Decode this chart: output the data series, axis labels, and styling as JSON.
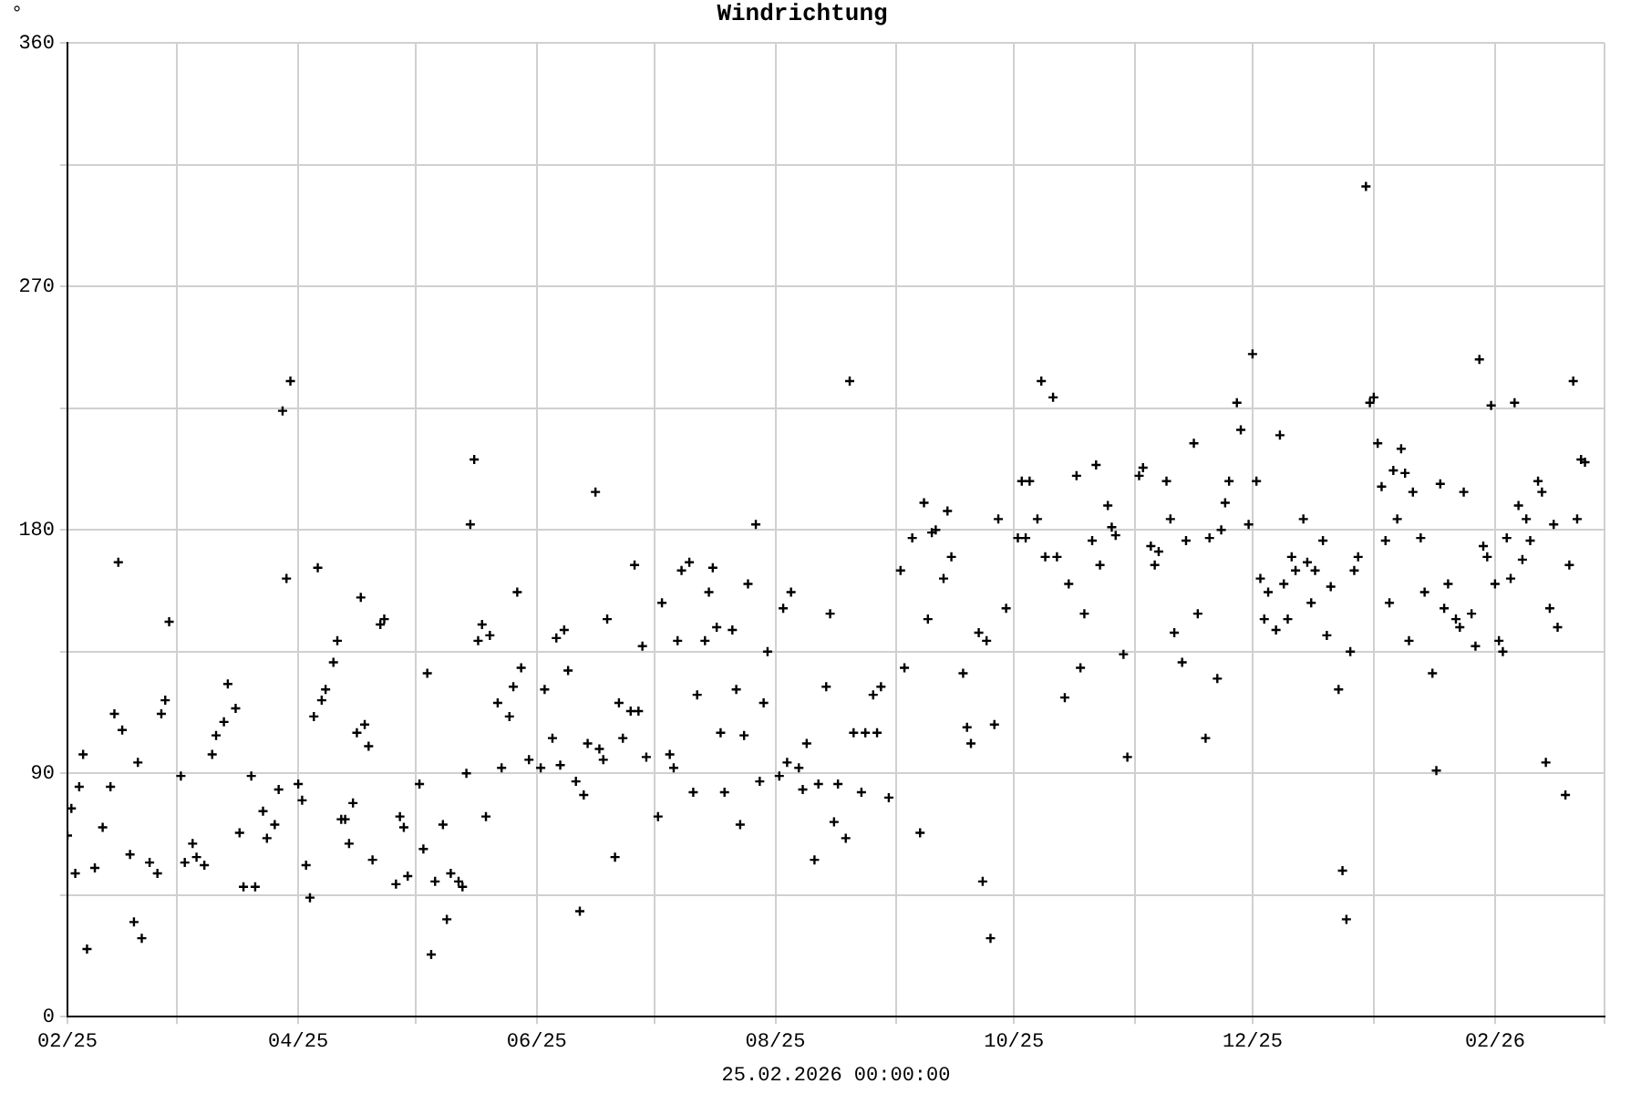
{
  "chart_data": {
    "type": "scatter",
    "title": "Windrichtung",
    "xlabel": "25.02.2026 00:00:00",
    "ylabel": "°",
    "color": "#000000",
    "marker": "cross",
    "grid": true,
    "legend": false,
    "xlim": [
      "2025-02-01",
      "2026-03-01"
    ],
    "xticks": [
      {
        "value": "2025-02",
        "label": "02/25"
      },
      {
        "value": "2025-03",
        "label": null
      },
      {
        "value": "2025-04",
        "label": "04/25"
      },
      {
        "value": "2025-05",
        "label": null
      },
      {
        "value": "2025-06",
        "label": "06/25"
      },
      {
        "value": "2025-07",
        "label": null
      },
      {
        "value": "2025-08",
        "label": "08/25"
      },
      {
        "value": "2025-09",
        "label": null
      },
      {
        "value": "2025-10",
        "label": "10/25"
      },
      {
        "value": "2025-11",
        "label": null
      },
      {
        "value": "2025-12",
        "label": "12/25"
      },
      {
        "value": "2026-01",
        "label": null
      },
      {
        "value": "2026-02",
        "label": "02/26"
      },
      {
        "value": "2026-03",
        "label": null
      }
    ],
    "ylim": [
      0,
      360
    ],
    "yticks": [
      0,
      {
        "value": 45,
        "label": null
      },
      90,
      {
        "value": 135,
        "label": null
      },
      180,
      {
        "value": 225,
        "label": null
      },
      270,
      {
        "value": 315,
        "label": null
      },
      360
    ],
    "x": [
      "2025-02-01",
      "2025-02-02",
      "2025-02-03",
      "2025-02-04",
      "2025-02-05",
      "2025-02-06",
      "2025-02-08",
      "2025-02-10",
      "2025-02-12",
      "2025-02-13",
      "2025-02-14",
      "2025-02-15",
      "2025-02-17",
      "2025-02-18",
      "2025-02-19",
      "2025-02-20",
      "2025-02-22",
      "2025-02-24",
      "2025-02-25",
      "2025-02-26",
      "2025-02-27",
      "2025-03-02",
      "2025-03-03",
      "2025-03-05",
      "2025-03-06",
      "2025-03-08",
      "2025-03-10",
      "2025-03-11",
      "2025-03-13",
      "2025-03-14",
      "2025-03-16",
      "2025-03-17",
      "2025-03-18",
      "2025-03-20",
      "2025-03-21",
      "2025-03-23",
      "2025-03-24",
      "2025-03-26",
      "2025-03-27",
      "2025-03-28",
      "2025-03-29",
      "2025-03-30",
      "2025-04-01",
      "2025-04-02",
      "2025-04-03",
      "2025-04-04",
      "2025-04-05",
      "2025-04-06",
      "2025-04-07",
      "2025-04-08",
      "2025-04-10",
      "2025-04-11",
      "2025-04-12",
      "2025-04-13",
      "2025-04-14",
      "2025-04-15",
      "2025-04-16",
      "2025-04-17",
      "2025-04-18",
      "2025-04-19",
      "2025-04-20",
      "2025-04-22",
      "2025-04-23",
      "2025-04-26",
      "2025-04-27",
      "2025-04-28",
      "2025-04-29",
      "2025-05-02",
      "2025-05-03",
      "2025-05-04",
      "2025-05-05",
      "2025-05-06",
      "2025-05-08",
      "2025-05-09",
      "2025-05-10",
      "2025-05-12",
      "2025-05-13",
      "2025-05-14",
      "2025-05-15",
      "2025-05-16",
      "2025-05-17",
      "2025-05-18",
      "2025-05-19",
      "2025-05-20",
      "2025-05-22",
      "2025-05-23",
      "2025-05-25",
      "2025-05-26",
      "2025-05-27",
      "2025-05-28",
      "2025-05-30",
      "2025-06-02",
      "2025-06-03",
      "2025-06-05",
      "2025-06-06",
      "2025-06-07",
      "2025-06-08",
      "2025-06-09",
      "2025-06-11",
      "2025-06-12",
      "2025-06-13",
      "2025-06-14",
      "2025-06-16",
      "2025-06-17",
      "2025-06-18",
      "2025-06-19",
      "2025-06-21",
      "2025-06-22",
      "2025-06-23",
      "2025-06-25",
      "2025-06-26",
      "2025-06-27",
      "2025-06-28",
      "2025-06-29",
      "2025-07-02",
      "2025-07-03",
      "2025-07-05",
      "2025-07-06",
      "2025-07-07",
      "2025-07-08",
      "2025-07-10",
      "2025-07-11",
      "2025-07-12",
      "2025-07-14",
      "2025-07-15",
      "2025-07-16",
      "2025-07-17",
      "2025-07-18",
      "2025-07-19",
      "2025-07-21",
      "2025-07-22",
      "2025-07-23",
      "2025-07-24",
      "2025-07-25",
      "2025-07-27",
      "2025-07-28",
      "2025-07-29",
      "2025-07-30",
      "2025-08-02",
      "2025-08-03",
      "2025-08-04",
      "2025-08-05",
      "2025-08-07",
      "2025-08-08",
      "2025-08-09",
      "2025-08-11",
      "2025-08-12",
      "2025-08-14",
      "2025-08-15",
      "2025-08-16",
      "2025-08-17",
      "2025-08-19",
      "2025-08-20",
      "2025-08-21",
      "2025-08-23",
      "2025-08-24",
      "2025-08-26",
      "2025-08-27",
      "2025-08-28",
      "2025-08-30",
      "2025-09-02",
      "2025-09-03",
      "2025-09-05",
      "2025-09-07",
      "2025-09-08",
      "2025-09-09",
      "2025-09-10",
      "2025-09-11",
      "2025-09-13",
      "2025-09-14",
      "2025-09-15",
      "2025-09-18",
      "2025-09-19",
      "2025-09-20",
      "2025-09-22",
      "2025-09-23",
      "2025-09-24",
      "2025-09-25",
      "2025-09-26",
      "2025-09-27",
      "2025-09-29",
      "2025-10-02",
      "2025-10-03",
      "2025-10-04",
      "2025-10-05",
      "2025-10-07",
      "2025-10-08",
      "2025-10-09",
      "2025-10-11",
      "2025-10-12",
      "2025-10-14",
      "2025-10-15",
      "2025-10-17",
      "2025-10-18",
      "2025-10-19",
      "2025-10-21",
      "2025-10-22",
      "2025-10-23",
      "2025-10-25",
      "2025-10-26",
      "2025-10-27",
      "2025-10-29",
      "2025-10-30",
      "2025-11-02",
      "2025-11-03",
      "2025-11-05",
      "2025-11-06",
      "2025-11-07",
      "2025-11-09",
      "2025-11-10",
      "2025-11-11",
      "2025-11-13",
      "2025-11-14",
      "2025-11-16",
      "2025-11-17",
      "2025-11-19",
      "2025-11-20",
      "2025-11-22",
      "2025-11-23",
      "2025-11-24",
      "2025-11-25",
      "2025-11-27",
      "2025-11-28",
      "2025-11-30",
      "2025-12-01",
      "2025-12-02",
      "2025-12-03",
      "2025-12-04",
      "2025-12-05",
      "2025-12-07",
      "2025-12-08",
      "2025-12-09",
      "2025-12-10",
      "2025-12-11",
      "2025-12-12",
      "2025-12-14",
      "2025-12-15",
      "2025-12-16",
      "2025-12-17",
      "2025-12-19",
      "2025-12-20",
      "2025-12-21",
      "2025-12-23",
      "2025-12-24",
      "2025-12-25",
      "2025-12-26",
      "2025-12-27",
      "2025-12-28",
      "2025-12-30",
      "2025-12-31",
      "2026-01-01",
      "2026-01-02",
      "2026-01-03",
      "2026-01-04",
      "2026-01-05",
      "2026-01-06",
      "2026-01-07",
      "2026-01-08",
      "2026-01-09",
      "2026-01-10",
      "2026-01-11",
      "2026-01-13",
      "2026-01-14",
      "2026-01-16",
      "2026-01-17",
      "2026-01-18",
      "2026-01-19",
      "2026-01-20",
      "2026-01-22",
      "2026-01-23",
      "2026-01-24",
      "2026-01-26",
      "2026-01-27",
      "2026-01-28",
      "2026-01-29",
      "2026-01-30",
      "2026-01-31",
      "2026-02-01",
      "2026-02-02",
      "2026-02-03",
      "2026-02-04",
      "2026-02-05",
      "2026-02-06",
      "2026-02-07",
      "2026-02-08",
      "2026-02-09",
      "2026-02-10",
      "2026-02-12",
      "2026-02-13",
      "2026-02-14",
      "2026-02-15",
      "2026-02-16",
      "2026-02-17",
      "2026-02-19",
      "2026-02-20",
      "2026-02-21",
      "2026-02-22",
      "2026-02-23",
      "2026-02-24"
    ],
    "values": [
      67,
      77,
      53,
      85,
      97,
      25,
      55,
      70,
      85,
      112,
      168,
      106,
      60,
      35,
      94,
      29,
      57,
      53,
      112,
      117,
      146,
      89,
      57,
      64,
      59,
      56,
      97,
      104,
      109,
      123,
      114,
      68,
      48,
      89,
      48,
      76,
      66,
      71,
      84,
      224,
      162,
      235,
      86,
      80,
      56,
      44,
      111,
      166,
      117,
      121,
      131,
      139,
      73,
      73,
      64,
      79,
      105,
      155,
      108,
      100,
      58,
      145,
      147,
      49,
      74,
      70,
      52,
      86,
      62,
      127,
      23,
      50,
      71,
      36,
      53,
      50,
      48,
      90,
      182,
      206,
      139,
      145,
      74,
      141,
      116,
      92,
      111,
      122,
      157,
      129,
      95,
      92,
      121,
      103,
      140,
      93,
      143,
      128,
      87,
      39,
      82,
      101,
      194,
      99,
      95,
      147,
      59,
      116,
      103,
      113,
      167,
      113,
      137,
      96,
      74,
      153,
      97,
      92,
      139,
      165,
      168,
      83,
      119,
      139,
      157,
      166,
      144,
      105,
      83,
      143,
      121,
      71,
      104,
      160,
      182,
      87,
      116,
      135,
      89,
      151,
      94,
      157,
      92,
      84,
      101,
      58,
      86,
      122,
      149,
      72,
      86,
      66,
      235,
      105,
      83,
      105,
      119,
      105,
      122,
      81,
      165,
      129,
      177,
      68,
      190,
      147,
      179,
      180,
      162,
      187,
      170,
      127,
      107,
      101,
      142,
      50,
      139,
      29,
      108,
      184,
      151,
      177,
      198,
      177,
      198,
      184,
      235,
      170,
      229,
      170,
      118,
      160,
      200,
      129,
      149,
      176,
      204,
      167,
      189,
      181,
      178,
      134,
      96,
      200,
      203,
      174,
      167,
      172,
      198,
      184,
      142,
      131,
      176,
      212,
      149,
      103,
      177,
      125,
      180,
      190,
      198,
      227,
      217,
      182,
      245,
      198,
      162,
      147,
      157,
      143,
      215,
      160,
      147,
      170,
      165,
      184,
      168,
      153,
      165,
      176,
      141,
      159,
      121,
      54,
      36,
      135,
      165,
      170,
      307,
      227,
      229,
      212,
      196,
      176,
      153,
      202,
      184,
      210,
      201,
      139,
      194,
      177,
      157,
      127,
      91,
      197,
      151,
      160,
      147,
      144,
      194,
      149,
      137,
      243,
      174,
      170,
      226,
      160,
      139,
      135,
      177,
      162,
      227,
      189,
      169,
      184,
      176,
      198,
      194,
      94,
      151,
      182,
      144,
      82,
      167,
      235,
      184,
      206,
      205
    ]
  }
}
